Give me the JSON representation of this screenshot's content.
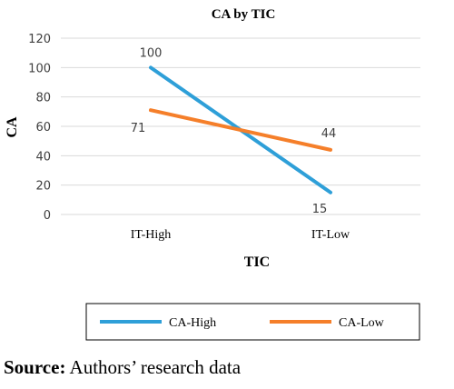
{
  "chart_data": {
    "type": "line",
    "title": "CA by TIC",
    "xlabel": "TIC",
    "ylabel": "CA",
    "categories": [
      "IT-High",
      "IT-Low"
    ],
    "ylim": [
      0,
      120
    ],
    "yticks": [
      0,
      20,
      40,
      60,
      80,
      100,
      120
    ],
    "grid": true,
    "legend": "bottom",
    "series": [
      {
        "name": "CA-High",
        "values": [
          100,
          15
        ],
        "color": "#2e9fd8",
        "labels": [
          "100",
          "15"
        ]
      },
      {
        "name": "CA-Low",
        "values": [
          71,
          44
        ],
        "color": "#f57f2a",
        "labels": [
          "71",
          "44"
        ]
      }
    ]
  },
  "source": {
    "prefix": "Source:",
    "text": "Authors’ research data"
  }
}
